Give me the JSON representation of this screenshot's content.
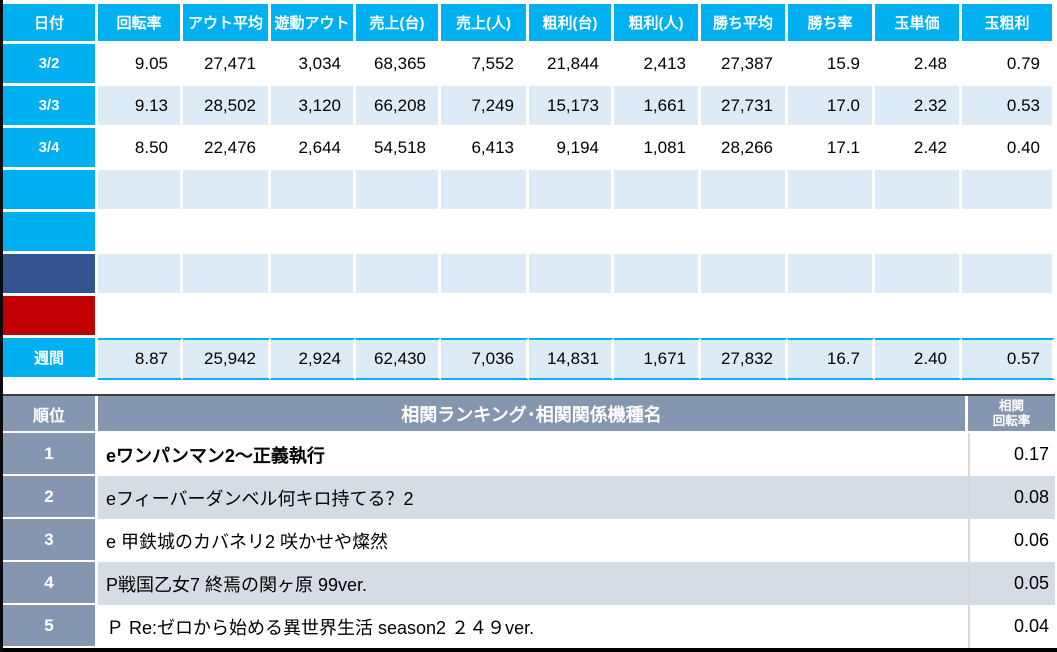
{
  "colors": {
    "accent_blue": "#00B0F0",
    "band_blue": "#DDEBF7",
    "navy": "#33548F",
    "red": "#C00000",
    "gray_blue": "#8496B0",
    "band_gray": "#D6DCE4",
    "row_white": "#FFFFFF"
  },
  "daily_table": {
    "columns": [
      "日付",
      "回転率",
      "アウト平均",
      "遊動アウト",
      "売上(台)",
      "売上(人)",
      "粗利(台)",
      "粗利(人)",
      "勝ち平均",
      "勝ち率",
      "玉単価",
      "玉粗利"
    ],
    "rows": [
      {
        "date": "3/2",
        "date_style": "blue",
        "row_style": "white",
        "values": [
          "9.05",
          "27,471",
          "3,034",
          "68,365",
          "7,552",
          "21,844",
          "2,413",
          "27,387",
          "15.9",
          "2.48",
          "0.79"
        ]
      },
      {
        "date": "3/3",
        "date_style": "blue",
        "row_style": "band",
        "values": [
          "9.13",
          "28,502",
          "3,120",
          "66,208",
          "7,249",
          "15,173",
          "1,661",
          "27,731",
          "17.0",
          "2.32",
          "0.53"
        ]
      },
      {
        "date": "3/4",
        "date_style": "blue",
        "row_style": "white",
        "values": [
          "8.50",
          "22,476",
          "2,644",
          "54,518",
          "6,413",
          "9,194",
          "1,081",
          "28,266",
          "17.1",
          "2.42",
          "0.40"
        ]
      },
      {
        "date": "",
        "date_style": "blue",
        "row_style": "band",
        "values": [
          "",
          "",
          "",
          "",
          "",
          "",
          "",
          "",
          "",
          "",
          ""
        ]
      },
      {
        "date": "",
        "date_style": "blue",
        "row_style": "white",
        "values": [
          "",
          "",
          "",
          "",
          "",
          "",
          "",
          "",
          "",
          "",
          ""
        ]
      },
      {
        "date": "",
        "date_style": "navy",
        "row_style": "band",
        "values": [
          "",
          "",
          "",
          "",
          "",
          "",
          "",
          "",
          "",
          "",
          ""
        ]
      },
      {
        "date": "",
        "date_style": "red",
        "row_style": "white",
        "values": [
          "",
          "",
          "",
          "",
          "",
          "",
          "",
          "",
          "",
          "",
          ""
        ]
      }
    ],
    "summary": {
      "label": "週間",
      "values": [
        "8.87",
        "25,942",
        "2,924",
        "62,430",
        "7,036",
        "14,831",
        "1,671",
        "27,832",
        "16.7",
        "2.40",
        "0.57"
      ]
    }
  },
  "ranking_table": {
    "rank_header": "順位",
    "title": "相関ランキング･相関関係機種名",
    "value_header_line1": "相関",
    "value_header_line2": "回転率",
    "rows": [
      {
        "rank": "1",
        "name": "eワンパンマン2～正義執行",
        "value": "0.17",
        "emphasis": true
      },
      {
        "rank": "2",
        "name": "eフィーバーダンベル何キロ持てる？2",
        "value": "0.08",
        "emphasis": false
      },
      {
        "rank": "3",
        "name": "e 甲鉄城のカバネリ2 咲かせや燦然",
        "value": "0.06",
        "emphasis": false
      },
      {
        "rank": "4",
        "name": "P戦国乙女7 終焉の関ヶ原 99ver.",
        "value": "0.05",
        "emphasis": false
      },
      {
        "rank": "5",
        "name": "Ｐ Re:ゼロから始める異世界生活 season2 ２４９ver.",
        "value": "0.04",
        "emphasis": false
      }
    ]
  }
}
